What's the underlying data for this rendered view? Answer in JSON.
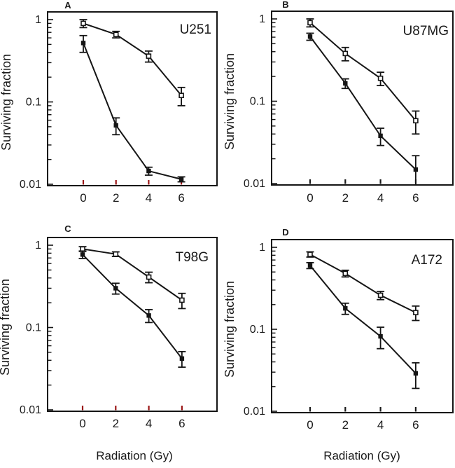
{
  "figure": {
    "background": "#ffffff",
    "ylabel": "Surviving fraction",
    "xlabel": "Radiation (Gy)",
    "colors": {
      "line": "#151515",
      "box_border": "#151515",
      "red_xtick": "#9b1717",
      "black_xtick": "#1a1a1a",
      "text": "#1a1a1a"
    }
  },
  "chart_data": [
    {
      "type": "line",
      "panel_label": "A",
      "title": "U251",
      "yscale": "log",
      "ylim": [
        0.01,
        1
      ],
      "x": [
        0,
        2,
        4,
        6
      ],
      "xtick_labels": [
        "0",
        "2",
        "4",
        "6"
      ],
      "ytick_labels": [
        "1",
        "0.1",
        "0.01"
      ],
      "xtick_color": "#9b1717",
      "xlabel": "",
      "ylabel": "Surviving fraction",
      "series": [
        {
          "name": "open squares",
          "marker": "open-square",
          "values": [
            0.9,
            0.66,
            0.36,
            0.12
          ],
          "errors": [
            0.1,
            0.06,
            0.055,
            0.03
          ]
        },
        {
          "name": "filled squares",
          "marker": "filled-square",
          "values": [
            0.52,
            0.052,
            0.0145,
            0.0115
          ],
          "errors": [
            0.12,
            0.012,
            0.0016,
            0.0008
          ]
        }
      ]
    },
    {
      "type": "line",
      "panel_label": "B",
      "title": "U87MG",
      "yscale": "log",
      "ylim": [
        0.01,
        1
      ],
      "x": [
        0,
        2,
        4,
        6
      ],
      "xtick_labels": [
        "0",
        "2",
        "4",
        "6"
      ],
      "ytick_labels": [
        "1",
        "0.1",
        "0.01"
      ],
      "xtick_color": "#1a1a1a",
      "xlabel": "",
      "ylabel": "Surviving fraction",
      "series": [
        {
          "name": "open squares",
          "marker": "open-square",
          "values": [
            0.9,
            0.38,
            0.19,
            0.058
          ],
          "errors": [
            0.1,
            0.07,
            0.035,
            0.018
          ]
        },
        {
          "name": "filled squares",
          "marker": "filled-square",
          "values": [
            0.61,
            0.165,
            0.038,
            0.0148
          ],
          "errors": [
            0.06,
            0.022,
            0.009,
            0.007
          ]
        }
      ]
    },
    {
      "type": "line",
      "panel_label": "C",
      "title": "T98G",
      "yscale": "log",
      "ylim": [
        0.01,
        1
      ],
      "x": [
        0,
        2,
        4,
        6
      ],
      "xtick_labels": [
        "0",
        "2",
        "4",
        "6"
      ],
      "ytick_labels": [
        "1",
        "0.1",
        "0.01"
      ],
      "xtick_color": "#9b1717",
      "xlabel": "Radiation (Gy)",
      "ylabel": "Surviving fraction",
      "series": [
        {
          "name": "open squares",
          "marker": "open-square",
          "values": [
            0.9,
            0.78,
            0.41,
            0.215
          ],
          "errors": [
            0.06,
            0.05,
            0.06,
            0.045
          ]
        },
        {
          "name": "filled squares",
          "marker": "filled-square",
          "values": [
            0.77,
            0.3,
            0.14,
            0.042
          ],
          "errors": [
            0.08,
            0.045,
            0.025,
            0.009
          ]
        }
      ]
    },
    {
      "type": "line",
      "panel_label": "D",
      "title": "A172",
      "yscale": "log",
      "ylim": [
        0.01,
        1
      ],
      "x": [
        0,
        2,
        4,
        6
      ],
      "xtick_labels": [
        "0",
        "2",
        "4",
        "6"
      ],
      "ytick_labels": [
        "1",
        "0.1",
        "0.01"
      ],
      "xtick_color": "#1a1a1a",
      "xlabel": "Radiation (Gy)",
      "ylabel": "Surviving fraction",
      "series": [
        {
          "name": "open squares",
          "marker": "open-square",
          "values": [
            0.82,
            0.48,
            0.26,
            0.16
          ],
          "errors": [
            0.06,
            0.045,
            0.03,
            0.032
          ]
        },
        {
          "name": "filled squares",
          "marker": "filled-square",
          "values": [
            0.6,
            0.18,
            0.082,
            0.029
          ],
          "errors": [
            0.05,
            0.028,
            0.024,
            0.01
          ]
        }
      ]
    }
  ]
}
